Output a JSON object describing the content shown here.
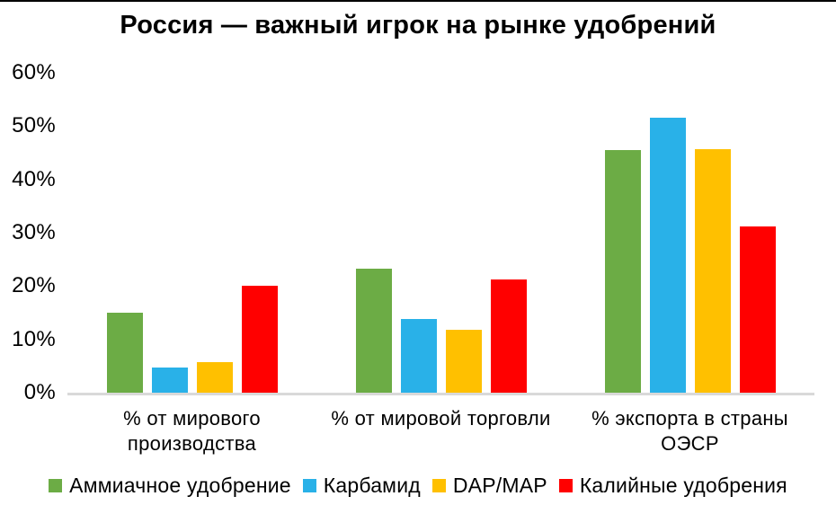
{
  "chart_data": {
    "type": "bar",
    "title": "Россия — важный игрок на рынке удобрений",
    "categories": [
      "% от мирового\nпроизводства",
      "% от мировой торговли",
      "% экспорта в страны\nОЭСР"
    ],
    "series": [
      {
        "name": "Аммиачное удобрение",
        "color": "#6cac45",
        "values": [
          15.0,
          23.2,
          45.5
        ]
      },
      {
        "name": "Карбамид",
        "color": "#29b1e8",
        "values": [
          4.8,
          13.8,
          51.5
        ]
      },
      {
        "name": "DAP/MAP",
        "color": "#ffc000",
        "values": [
          5.8,
          11.8,
          45.7
        ]
      },
      {
        "name": "Калийные удобрения",
        "color": "#ff0000",
        "values": [
          20.0,
          21.2,
          31.2
        ]
      }
    ],
    "ylim": [
      0,
      60
    ],
    "ytick_values": [
      0,
      10,
      20,
      30,
      40,
      50,
      60
    ],
    "ytick_labels": [
      "0%",
      "10%",
      "20%",
      "30%",
      "40%",
      "50%",
      "60%"
    ],
    "grid": false,
    "legend_position": "bottom",
    "axis_line_color": "#d9d9d9"
  }
}
